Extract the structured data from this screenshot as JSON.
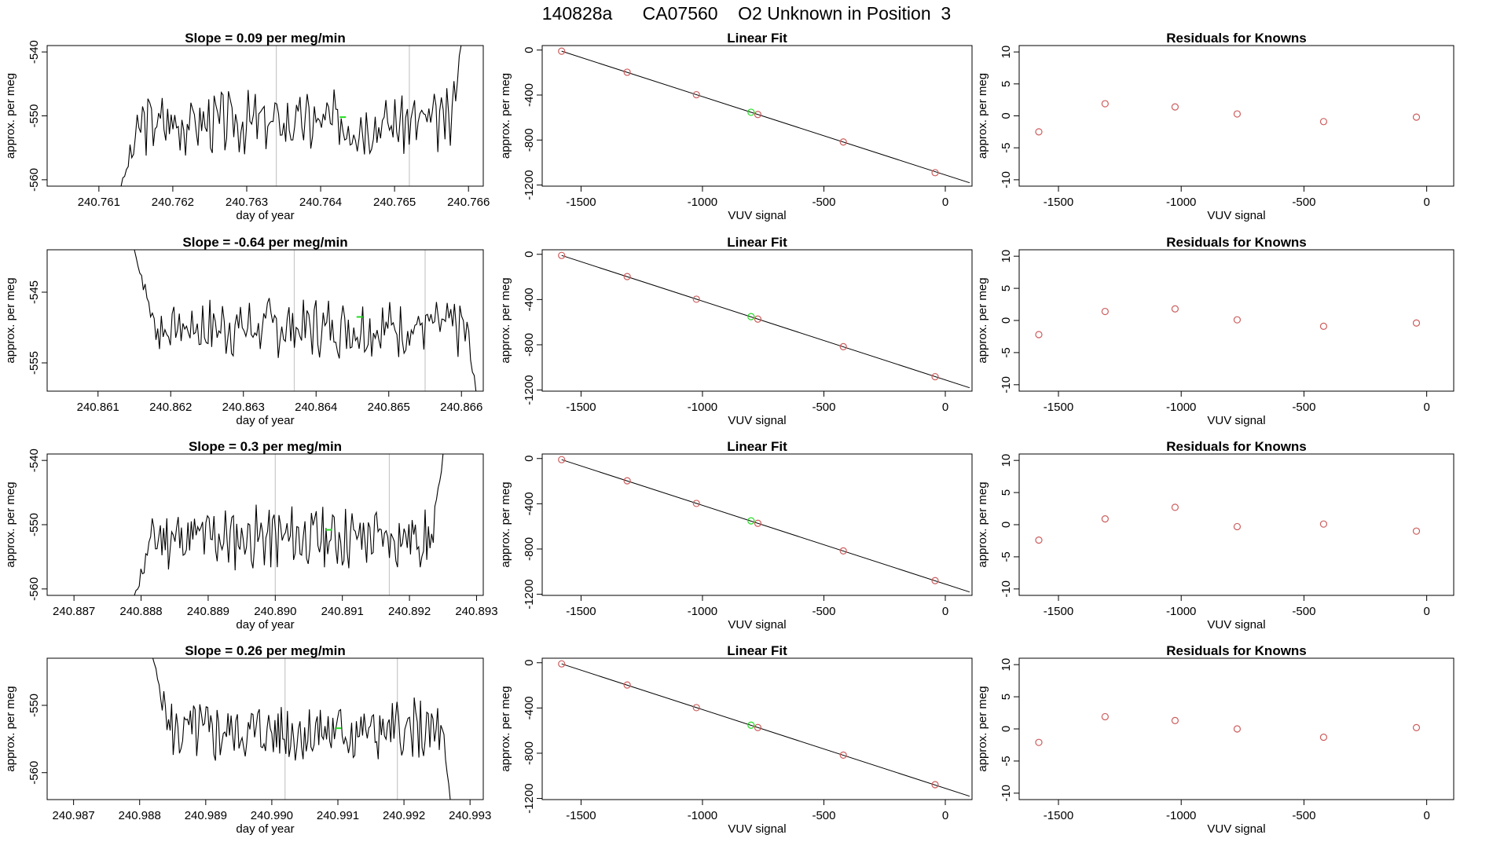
{
  "figure_title": "140828a      CA07560    O2 Unknown in Position  3",
  "colors": {
    "axis": "#000000",
    "trace": "#000000",
    "known": "#cd5c5c",
    "unknown": "#22dd22",
    "marker_line": "#c8c8c8"
  },
  "chart_data": [
    {
      "type": "line",
      "panel": "timeseries-1",
      "title": "Slope =  0.09  per meg/min",
      "xlabel": "day of year",
      "ylabel": "approx. per meg",
      "xlim": [
        240.7603,
        240.7662
      ],
      "ylim": [
        -561,
        -539
      ],
      "xticks": [
        240.761,
        240.762,
        240.763,
        240.764,
        240.765,
        240.766
      ],
      "xtick_labels": [
        "240.761",
        "240.762",
        "240.763",
        "240.764",
        "240.765",
        "240.766"
      ],
      "yticks": [
        -540,
        -550,
        -560
      ],
      "ytick_labels": [
        "-540",
        "-550",
        "-560"
      ],
      "markers": [
        240.7634,
        240.7652
      ],
      "highlight": {
        "x": 240.7643,
        "y": -550.2
      },
      "series": {
        "start": 240.7613,
        "end": 240.7659,
        "start_y": -561,
        "level": -551,
        "amp": 4,
        "seed": 3,
        "end_y": -539
      }
    },
    {
      "type": "line",
      "panel": "timeseries-2",
      "title": "Slope =  -0.64  per meg/min",
      "xlabel": "day of year",
      "ylabel": "approx. per meg",
      "xlim": [
        240.8603,
        240.8663
      ],
      "ylim": [
        -559,
        -539
      ],
      "xticks": [
        240.861,
        240.862,
        240.863,
        240.864,
        240.865,
        240.866
      ],
      "xtick_labels": [
        "240.861",
        "240.862",
        "240.863",
        "240.864",
        "240.865",
        "240.866"
      ],
      "yticks": [
        -545,
        -555
      ],
      "ytick_labels": [
        "-545",
        "-555"
      ],
      "markers": [
        240.8637,
        240.8655
      ],
      "highlight": {
        "x": 240.8646,
        "y": -548.5
      },
      "series": {
        "start": 240.8615,
        "end": 240.8662,
        "start_y": -539,
        "level": -550,
        "amp": 3.5,
        "seed": 7,
        "end_y": -559
      }
    },
    {
      "type": "line",
      "panel": "timeseries-3",
      "title": "Slope =  0.3  per meg/min",
      "xlabel": "day of year",
      "ylabel": "approx. per meg",
      "xlim": [
        240.8866,
        240.8931
      ],
      "ylim": [
        -561,
        -539
      ],
      "xticks": [
        240.887,
        240.888,
        240.889,
        240.89,
        240.891,
        240.892,
        240.893
      ],
      "xtick_labels": [
        "240.887",
        "240.888",
        "240.889",
        "240.890",
        "240.891",
        "240.892",
        "240.893"
      ],
      "yticks": [
        -540,
        -550,
        -560
      ],
      "ytick_labels": [
        "-540",
        "-550",
        "-560"
      ],
      "markers": [
        240.89,
        240.8917
      ],
      "highlight": {
        "x": 240.8908,
        "y": -550.8
      },
      "series": {
        "start": 240.8879,
        "end": 240.8925,
        "start_y": -561,
        "level": -552,
        "amp": 4,
        "seed": 11,
        "end_y": -539
      }
    },
    {
      "type": "line",
      "panel": "timeseries-4",
      "title": "Slope =  0.26  per meg/min",
      "xlabel": "day of year",
      "ylabel": "approx. per meg",
      "xlim": [
        240.9866,
        240.9932
      ],
      "ylim": [
        -564,
        -543
      ],
      "xticks": [
        240.987,
        240.988,
        240.989,
        240.99,
        240.991,
        240.992,
        240.993
      ],
      "xtick_labels": [
        "240.987",
        "240.988",
        "240.989",
        "240.990",
        "240.991",
        "240.992",
        "240.993"
      ],
      "yticks": [
        -550,
        -560
      ],
      "ytick_labels": [
        "-550",
        "-560"
      ],
      "markers": [
        240.9902,
        240.9919
      ],
      "highlight": {
        "x": 240.991,
        "y": -553.4
      },
      "series": {
        "start": 240.9882,
        "end": 240.9927,
        "start_y": -543,
        "level": -554,
        "amp": 4,
        "seed": 5,
        "end_y": -564
      }
    },
    {
      "type": "scatter",
      "panel": "fit-1",
      "title": "Linear Fit",
      "xlabel": "VUV signal",
      "ylabel": "approx. per meg",
      "xlim": [
        -1660,
        110
      ],
      "ylim": [
        -1210,
        40
      ],
      "xticks": [
        -1500,
        -1000,
        -500,
        0
      ],
      "xtick_labels": [
        "-1500",
        "-1000",
        "-500",
        "0"
      ],
      "yticks": [
        0,
        -400,
        -800,
        -1200
      ],
      "ytick_labels": [
        "0",
        "-400",
        "-800",
        "-1200"
      ],
      "line": {
        "x": [
          -1580,
          100
        ],
        "y": [
          -10,
          -1180
        ]
      },
      "points_x": [
        -1580,
        -1310,
        -1025,
        -772,
        -420,
        -42
      ],
      "points_y": [
        -10,
        -197,
        -397,
        -573,
        -817,
        -1090
      ],
      "unknown": {
        "x": -800,
        "y": -553
      }
    },
    {
      "type": "scatter",
      "panel": "fit-2",
      "title": "Linear Fit",
      "xlabel": "VUV signal",
      "ylabel": "approx. per meg",
      "xlim": [
        -1660,
        110
      ],
      "ylim": [
        -1210,
        40
      ],
      "xticks": [
        -1500,
        -1000,
        -500,
        0
      ],
      "xtick_labels": [
        "-1500",
        "-1000",
        "-500",
        "0"
      ],
      "yticks": [
        0,
        -400,
        -800,
        -1200
      ],
      "ytick_labels": [
        "0",
        "-400",
        "-800",
        "-1200"
      ],
      "line": {
        "x": [
          -1580,
          100
        ],
        "y": [
          -10,
          -1180
        ]
      },
      "points_x": [
        -1580,
        -1310,
        -1025,
        -772,
        -420,
        -42
      ],
      "points_y": [
        -10,
        -197,
        -397,
        -573,
        -817,
        -1082
      ],
      "unknown": {
        "x": -800,
        "y": -551
      }
    },
    {
      "type": "scatter",
      "panel": "fit-3",
      "title": "Linear Fit",
      "xlabel": "VUV signal",
      "ylabel": "approx. per meg",
      "xlim": [
        -1660,
        110
      ],
      "ylim": [
        -1210,
        40
      ],
      "xticks": [
        -1500,
        -1000,
        -500,
        0
      ],
      "xtick_labels": [
        "-1500",
        "-1000",
        "-500",
        "0"
      ],
      "yticks": [
        0,
        -400,
        -800,
        -1200
      ],
      "ytick_labels": [
        "0",
        "-400",
        "-800",
        "-1200"
      ],
      "line": {
        "x": [
          -1580,
          100
        ],
        "y": [
          -10,
          -1180
        ]
      },
      "points_x": [
        -1580,
        -1310,
        -1025,
        -772,
        -420,
        -42
      ],
      "points_y": [
        -10,
        -197,
        -397,
        -573,
        -817,
        -1080
      ],
      "unknown": {
        "x": -800,
        "y": -551
      }
    },
    {
      "type": "scatter",
      "panel": "fit-4",
      "title": "Linear Fit",
      "xlabel": "VUV signal",
      "ylabel": "approx. per meg",
      "xlim": [
        -1660,
        110
      ],
      "ylim": [
        -1210,
        40
      ],
      "xticks": [
        -1500,
        -1000,
        -500,
        0
      ],
      "xtick_labels": [
        "-1500",
        "-1000",
        "-500",
        "0"
      ],
      "yticks": [
        0,
        -400,
        -800,
        -1200
      ],
      "ytick_labels": [
        "0",
        "-400",
        "-800",
        "-1200"
      ],
      "line": {
        "x": [
          -1580,
          100
        ],
        "y": [
          -10,
          -1180
        ]
      },
      "points_x": [
        -1580,
        -1310,
        -1025,
        -772,
        -420,
        -42
      ],
      "points_y": [
        -10,
        -197,
        -397,
        -573,
        -817,
        -1078
      ],
      "unknown": {
        "x": -800,
        "y": -552
      }
    },
    {
      "type": "scatter",
      "panel": "resid-1",
      "title": "Residuals for Knowns",
      "xlabel": "VUV signal",
      "ylabel": "approx. per meg",
      "xlim": [
        -1660,
        110
      ],
      "ylim": [
        -11,
        11
      ],
      "xticks": [
        -1500,
        -1000,
        -500,
        0
      ],
      "xtick_labels": [
        "-1500",
        "-1000",
        "-500",
        "0"
      ],
      "yticks": [
        10,
        5,
        0,
        -5,
        -10
      ],
      "ytick_labels": [
        "10",
        "5",
        "0",
        "-5",
        "-10"
      ],
      "points_x": [
        -1580,
        -1310,
        -1025,
        -772,
        -420,
        -42
      ],
      "points_y": [
        -2.5,
        1.9,
        1.4,
        0.3,
        -0.9,
        -0.2
      ]
    },
    {
      "type": "scatter",
      "panel": "resid-2",
      "title": "Residuals for Knowns",
      "xlabel": "VUV signal",
      "ylabel": "approx. per meg",
      "xlim": [
        -1660,
        110
      ],
      "ylim": [
        -11,
        11
      ],
      "xticks": [
        -1500,
        -1000,
        -500,
        0
      ],
      "xtick_labels": [
        "-1500",
        "-1000",
        "-500",
        "0"
      ],
      "yticks": [
        10,
        5,
        0,
        -5,
        -10
      ],
      "ytick_labels": [
        "10",
        "5",
        "0",
        "-5",
        "-10"
      ],
      "points_x": [
        -1580,
        -1310,
        -1025,
        -772,
        -420,
        -42
      ],
      "points_y": [
        -2.2,
        1.4,
        1.8,
        0.1,
        -0.9,
        -0.4
      ]
    },
    {
      "type": "scatter",
      "panel": "resid-3",
      "title": "Residuals for Knowns",
      "xlabel": "VUV signal",
      "ylabel": "approx. per meg",
      "xlim": [
        -1660,
        110
      ],
      "ylim": [
        -11,
        11
      ],
      "xticks": [
        -1500,
        -1000,
        -500,
        0
      ],
      "xtick_labels": [
        "-1500",
        "-1000",
        "-500",
        "0"
      ],
      "yticks": [
        10,
        5,
        0,
        -5,
        -10
      ],
      "ytick_labels": [
        "10",
        "5",
        "0",
        "-5",
        "-10"
      ],
      "points_x": [
        -1580,
        -1310,
        -1025,
        -772,
        -420,
        -42
      ],
      "points_y": [
        -2.4,
        0.9,
        2.7,
        -0.3,
        0.1,
        -1.0
      ]
    },
    {
      "type": "scatter",
      "panel": "resid-4",
      "title": "Residuals for Knowns",
      "xlabel": "VUV signal",
      "ylabel": "approx. per meg",
      "xlim": [
        -1660,
        110
      ],
      "ylim": [
        -11,
        11
      ],
      "xticks": [
        -1500,
        -1000,
        -500,
        0
      ],
      "xtick_labels": [
        "-1500",
        "-1000",
        "-500",
        "0"
      ],
      "yticks": [
        10,
        5,
        0,
        -5,
        -10
      ],
      "ytick_labels": [
        "10",
        "5",
        "0",
        "-5",
        "-10"
      ],
      "points_x": [
        -1580,
        -1310,
        -1025,
        -772,
        -420,
        -42
      ],
      "points_y": [
        -2.1,
        1.9,
        1.3,
        0.0,
        -1.3,
        0.2
      ]
    }
  ]
}
